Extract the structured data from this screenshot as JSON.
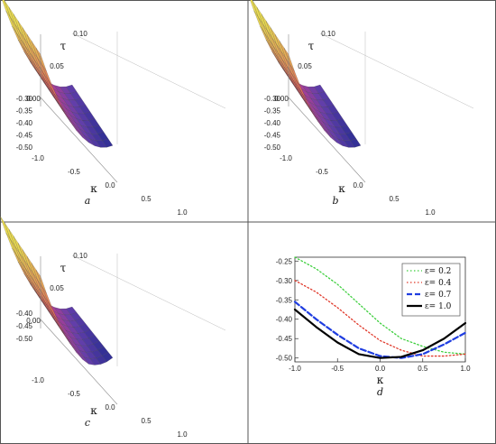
{
  "panels": [
    {
      "label": "a",
      "k_label": "κ",
      "tau_label": "τ",
      "k_ticks": [
        "-1.0",
        "-0.5",
        "0.0",
        "0.5",
        "1.0"
      ],
      "tau_ticks": [
        "0.00",
        "0.05",
        "0.10"
      ],
      "z_ticks": [
        "-0.30",
        "-0.35",
        "-0.40",
        "-0.45",
        "-0.50"
      ]
    },
    {
      "label": "b",
      "k_label": "κ",
      "tau_label": "τ",
      "k_ticks": [
        "-1.0",
        "-0.5",
        "0.0",
        "0.5",
        "1.0"
      ],
      "tau_ticks": [
        "0.00",
        "0.05",
        "0.10"
      ],
      "z_ticks": [
        "-0.30",
        "-0.35",
        "-0.40",
        "-0.45",
        "-0.50"
      ]
    },
    {
      "label": "c",
      "k_label": "κ",
      "tau_label": "τ",
      "k_ticks": [
        "-1.0",
        "-0.5",
        "0.0",
        "0.5",
        "1.0"
      ],
      "tau_ticks": [
        "0.00",
        "0.05",
        "0.10"
      ],
      "z_ticks": [
        "-0.40",
        "-0.45",
        "-0.50"
      ]
    }
  ],
  "chart_data": {
    "type": "line",
    "panel_label": "d",
    "xlabel": "κ",
    "ylabel": "",
    "xlim": [
      -1.0,
      1.0
    ],
    "ylim": [
      -0.51,
      -0.24
    ],
    "x_ticks": [
      "-1.0",
      "-0.5",
      "0.0",
      "0.5",
      "1.0"
    ],
    "y_ticks": [
      "-0.25",
      "-0.30",
      "-0.35",
      "-0.40",
      "-0.45",
      "-0.50"
    ],
    "legend_position": "top-right",
    "x": [
      -1.0,
      -0.75,
      -0.5,
      -0.25,
      0.0,
      0.25,
      0.5,
      0.75,
      1.0
    ],
    "series": [
      {
        "name": "ε= 0.2",
        "color": "#3ecf3e",
        "dash": "dotted",
        "values": [
          -0.24,
          -0.27,
          -0.31,
          -0.36,
          -0.41,
          -0.45,
          -0.47,
          -0.485,
          -0.49
        ]
      },
      {
        "name": "ε= 0.4",
        "color": "#e0392b",
        "dash": "dotted",
        "values": [
          -0.3,
          -0.33,
          -0.37,
          -0.415,
          -0.455,
          -0.48,
          -0.495,
          -0.495,
          -0.49
        ]
      },
      {
        "name": "ε= 0.7",
        "color": "#1f3de0",
        "dash": "dashed",
        "values": [
          -0.355,
          -0.4,
          -0.44,
          -0.475,
          -0.495,
          -0.5,
          -0.49,
          -0.465,
          -0.435
        ]
      },
      {
        "name": "ε= 1.0",
        "color": "#000000",
        "dash": "solid",
        "values": [
          -0.375,
          -0.42,
          -0.46,
          -0.49,
          -0.5,
          -0.497,
          -0.48,
          -0.45,
          -0.41
        ]
      }
    ]
  }
}
